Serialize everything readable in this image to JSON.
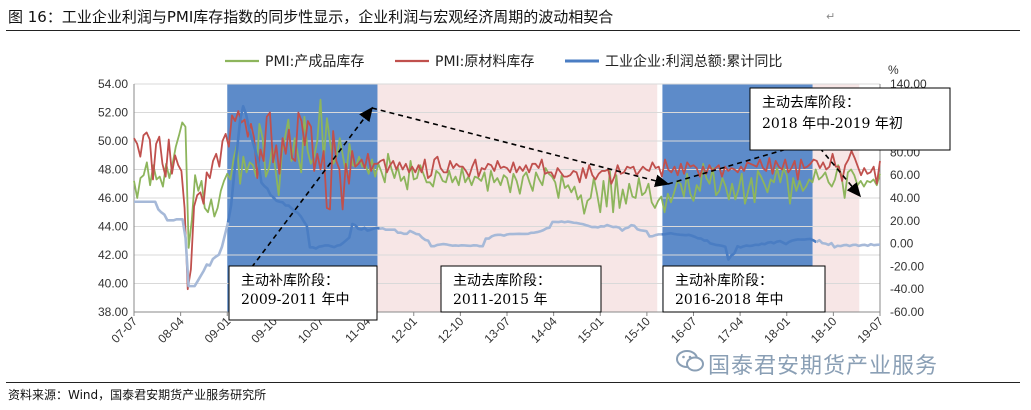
{
  "figure_title": "图 16：工业企业利润与PMI库存指数的同步性显示，企业利润与宏观经济周期的波动相契合",
  "source_note": "资料来源：Wind，国泰君安期货产业服务研究所",
  "watermark": "国泰君安期货产业服务",
  "paragraph_mark": "↵",
  "right_axis_unit": "%",
  "colors": {
    "pmi_finished": "#8db55c",
    "pmi_raw": "#c0504d",
    "profit": "#4a7dc3",
    "profit_faded": "#a6b9d8",
    "blue_band": "#4f81c4",
    "pink_band": "#f6e2e2"
  },
  "annotations": [
    {
      "line1": "主动补库阶段：",
      "line2": "2009-2011 年中"
    },
    {
      "line1": "主动去库阶段：",
      "line2": "2011-2015 年"
    },
    {
      "line1": "主动补库阶段：",
      "line2": "2016-2018 年中"
    },
    {
      "line1": "主动去库阶段：",
      "line2": "2018 年中-2019 年初"
    }
  ],
  "chart_data": {
    "type": "line",
    "title": "",
    "legend_position": "top",
    "x_ticks": [
      "07-07",
      "08-04",
      "09-01",
      "09-10",
      "10-07",
      "11-04",
      "12-01",
      "12-10",
      "13-07",
      "14-04",
      "15-01",
      "15-10",
      "16-07",
      "17-04",
      "18-01",
      "18-10",
      "19-07"
    ],
    "x_range": [
      "2007-07",
      "2019-07"
    ],
    "y_left": {
      "range": [
        38,
        54
      ],
      "ticks": [
        "38.00",
        "40.00",
        "42.00",
        "44.00",
        "46.00",
        "48.00",
        "50.00",
        "52.00",
        "54.00"
      ]
    },
    "y_right": {
      "range": [
        -60,
        140
      ],
      "ticks": [
        "-60.00",
        "-40.00",
        "-20.00",
        "0.00",
        "20.00",
        "40.00",
        "60.00",
        "80.00",
        "100.00",
        "120.00",
        "140.00"
      ]
    },
    "bands": [
      {
        "type": "主动补库",
        "start": "2009-01",
        "end": "2011-06"
      },
      {
        "type": "主动去库",
        "start": "2011-06",
        "end": "2015-12"
      },
      {
        "type": "主动补库",
        "start": "2016-01",
        "end": "2018-06"
      },
      {
        "type": "主动去库",
        "start": "2018-06",
        "end": "2019-03"
      }
    ],
    "series": [
      {
        "name": "PMI:产成品库存",
        "axis": "left",
        "start": "2007-07",
        "values": [
          47.2,
          46.0,
          47.4,
          47.6,
          48.5,
          46.9,
          48.3,
          47.3,
          47.5,
          46.8,
          48.4,
          47.4,
          48.4,
          49.6,
          50.4,
          51.3,
          51.0,
          42.5,
          44.5,
          47.6,
          46.5,
          47.2,
          45.3,
          45.0,
          45.9,
          44.7,
          45.3,
          46.5,
          47.2,
          47.7,
          47.3,
          48.8,
          49.7,
          47.0,
          48.9,
          47.8,
          48.5,
          48.3,
          47.5,
          51.2,
          50.2,
          47.5,
          48.1,
          49.6,
          48.0,
          46.2,
          49.2,
          50.3,
          51.5,
          48.6,
          50.2,
          49.0,
          47.8,
          51.7,
          49.3,
          48.4,
          48.9,
          50.0,
          52.9,
          48.6,
          51.6,
          49.9,
          48.4,
          48.9,
          50.2,
          48.9,
          47.7,
          49.8,
          48.3,
          48.2,
          48.9,
          48.2,
          48.3,
          47.7,
          48.7,
          47.5,
          48.4,
          47.8,
          47.1,
          49.1,
          48.1,
          47.4,
          48.2,
          47.2,
          47.5,
          46.6,
          48.6,
          47.3,
          47.4,
          48.3,
          47.7,
          47.1,
          47.1,
          46.8,
          47.9,
          47.7,
          47.2,
          47.1,
          47.9,
          47.1,
          47.5,
          46.9,
          48.1,
          47.1,
          47.5,
          46.9,
          47.5,
          47.4,
          47.2,
          47.8,
          46.5,
          47.9,
          47.1,
          47.4,
          46.9,
          47.6,
          47.4,
          46.4,
          47.7,
          47.2,
          46.3,
          47.5,
          47.8,
          47.1,
          46.5,
          47.8,
          47.3,
          46.9,
          48.1,
          47.7,
          47.5,
          47.1,
          46.0,
          47.6,
          46.7,
          46.9,
          46.4,
          46.8,
          45.9,
          46.2,
          44.9,
          45.8,
          46.0,
          47.4,
          46.3,
          45.0,
          47.2,
          45.4,
          47.9,
          45.0,
          47.6,
          45.3,
          46.6,
          45.6,
          47.0,
          46.1,
          46.0,
          47.4,
          46.2,
          46.4,
          47.0,
          45.7,
          45.3,
          45.8,
          46.1,
          45.0,
          46.3,
          45.7,
          46.4,
          47.2,
          47.0,
          46.1,
          47.7,
          46.3,
          45.8,
          46.9,
          46.5,
          48.4,
          47.4,
          47.0,
          48.1,
          46.2,
          46.5,
          47.4,
          46.8,
          45.9,
          47.0,
          45.9,
          46.6,
          47.7,
          45.6,
          46.5,
          47.4,
          45.7,
          47.9,
          47.5,
          47.0,
          46.4,
          47.3,
          47.1,
          48.1,
          47.1,
          48.1,
          47.6,
          45.6,
          47.4,
          46.5,
          47.2,
          46.5,
          46.8,
          47.3,
          47.1,
          48.0,
          47.3,
          47.5,
          47.8,
          47.1,
          46.8,
          47.3,
          48.3,
          47.6,
          46.0,
          47.8,
          48.0,
          47.6,
          46.9,
          47.2,
          46.8,
          47.2,
          47.1,
          47.3,
          46.9,
          47.7
        ]
      },
      {
        "name": "PMI:原材料库存",
        "axis": "left",
        "start": "2007-07",
        "values": [
          50.2,
          49.8,
          48.9,
          50.4,
          50.6,
          50.1,
          47.3,
          49.8,
          50.3,
          48.4,
          47.5,
          50.1,
          47.7,
          49.0,
          48.3,
          47.9,
          45.3,
          39.6,
          41.0,
          45.4,
          46.2,
          46.4,
          45.6,
          47.8,
          47.4,
          48.6,
          49.1,
          48.2,
          50.0,
          50.5,
          49.6,
          51.8,
          51.4,
          52.1,
          51.3,
          51.5,
          50.3,
          51.2,
          50.2,
          47.4,
          49.4,
          48.6,
          51.7,
          52.0,
          48.5,
          49.7,
          47.7,
          50.2,
          49.1,
          50.8,
          48.8,
          48.6,
          52.0,
          51.4,
          49.7,
          51.4,
          51.0,
          47.9,
          49.1,
          48.0,
          49.3,
          45.3,
          45.2,
          50.7,
          48.6,
          48.0,
          45.2,
          48.4,
          47.0,
          49.3,
          48.2,
          48.4,
          48.7,
          48.1,
          49.1,
          47.9,
          48.4,
          48.4,
          48.6,
          48.7,
          47.8,
          48.3,
          48.6,
          48.0,
          48.5,
          48.0,
          48.4,
          47.8,
          48.2,
          47.8,
          48.3,
          47.8,
          48.7,
          47.4,
          47.6,
          48.7,
          48.9,
          48.1,
          47.8,
          47.8,
          48.6,
          48.1,
          48.4,
          48.2,
          48.2,
          47.9,
          47.5,
          48.2,
          48.7,
          47.5,
          48.1,
          48.0,
          48.4,
          48.3,
          47.9,
          48.6,
          48.1,
          48.2,
          48.1,
          47.8,
          48.5,
          47.8,
          48.2,
          47.9,
          48.3,
          47.8,
          48.4,
          48.4,
          48.1,
          48.7,
          47.7,
          47.8,
          47.8,
          47.4,
          48.1,
          47.8,
          47.5,
          47.5,
          47.6,
          47.9,
          47.8,
          47.1,
          48.1,
          47.4,
          48.3,
          47.6,
          47.3,
          47.7,
          47.9,
          47.9,
          48.0,
          47.0,
          47.5,
          48.3,
          47.7,
          47.8,
          48.2,
          48.1,
          48.2,
          47.6,
          47.9,
          48.2,
          48.0,
          47.9,
          48.5,
          48.1,
          48.2,
          47.5,
          48.7,
          48.0,
          47.8,
          48.2,
          47.6,
          48.4,
          47.7,
          48.5,
          48.2,
          48.3,
          48.1,
          47.5,
          48.2,
          47.7,
          48.3,
          47.9,
          48.1,
          48.3,
          47.5,
          48.2,
          47.9,
          48.1,
          48.0,
          47.8,
          48.2,
          47.9,
          48.5,
          48.4,
          48.3,
          48.2,
          48.7,
          48.1,
          47.9,
          48.8,
          47.7,
          48.6,
          48.2,
          48.0,
          48.7,
          47.8,
          48.1,
          48.6,
          47.3,
          48.7,
          48.1,
          48.2,
          48.4,
          48.7,
          48.6,
          48.1,
          48.5,
          48.0,
          48.2,
          49.1,
          48.2,
          48.2,
          47.2,
          48.3,
          48.7,
          49.3,
          48.8,
          48.2,
          47.6,
          48.1,
          47.7,
          47.8,
          48.2,
          47.0,
          48.6
        ]
      },
      {
        "name": "工业企业:利润总额:累计同比",
        "axis": "right",
        "start": "2007-07",
        "values": [
          36.7,
          36.7,
          36.7,
          36.7,
          36.7,
          36.7,
          36.7,
          36.7,
          30.1,
          27.4,
          25.5,
          20.4,
          20.4,
          20.4,
          21.3,
          21.3,
          21.3,
          4.9,
          -37.3,
          -37.3,
          -37.3,
          -32.9,
          -28.3,
          -23.8,
          -18.3,
          -19.2,
          -13.5,
          -11.4,
          -9.7,
          -2.9,
          7.8,
          18.6,
          33.1,
          59.8,
          82.7,
          108.4,
          120.5,
          113.0,
          100.0,
          90.7,
          81.9,
          71.3,
          53.6,
          50.4,
          48.2,
          42.7,
          40.4,
          37.6,
          36.7,
          36.2,
          33.5,
          33.4,
          30.8,
          28.3,
          27.0,
          23.9,
          19.5,
          15.5,
          -3.3,
          -3.3,
          -4.3,
          -2.7,
          -2.3,
          -1.6,
          -1.6,
          -2.3,
          -3.1,
          -1.8,
          -1.3,
          0.7,
          3.0,
          5.3,
          17.2,
          16.0,
          12.9,
          12.3,
          13.8,
          11.4,
          12.1,
          13.1,
          13.8,
          13.1,
          13.4,
          12.2,
          12.2,
          12.2,
          12.2,
          9.6,
          9.6,
          8.6,
          8.6,
          11.1,
          9.9,
          8.5,
          8.1,
          5.3,
          3.3,
          2.6,
          -2.3,
          -2.3,
          -1.2,
          -0.8,
          -0.4,
          -0.7,
          -1.3,
          -1.8,
          -1.6,
          -1.9,
          -1.5,
          -1.6,
          -1.8,
          -2.0,
          -1.5,
          -1.6,
          -2.3,
          -2.3,
          4.4,
          4.4,
          6.4,
          7.4,
          7.7,
          7.7,
          7.0,
          8.0,
          8.4,
          8.4,
          8.5,
          8.6,
          8.5,
          8.5,
          8.6,
          9.5,
          9.6,
          10.1,
          10.8,
          11.8,
          13.4,
          13.9,
          19.0,
          19.0,
          18.9,
          19.4,
          18.7,
          19.3,
          18.9,
          18.3,
          18.1,
          17.5,
          17.1,
          16.2,
          15.4,
          14.5,
          14.6,
          14.2,
          15.2,
          15.0,
          16.3,
          15.4,
          14.5,
          14.7,
          14.0,
          11.4,
          13.4,
          14.1,
          16.2,
          15.6,
          12.6,
          11.7,
          11.3,
          10.9,
          6.3,
          6.5,
          7.5,
          8.1,
          8.1,
          8.2,
          8.7,
          9.1,
          8.5,
          8.1,
          7.8,
          7.6,
          7.4,
          7.7,
          6.9,
          5.9,
          4.6,
          4.4,
          2.7,
          2.8,
          0.2,
          -0.5,
          -1.2,
          -1.5,
          -2.0,
          -2.8,
          -14.0,
          -10.3,
          -8.6,
          -2.3,
          -3.4,
          -2.4,
          -1.7,
          -2.1,
          -1.7,
          -1.0,
          -1.2,
          -0.1,
          -0.5,
          0.8,
          1.3,
          0.3,
          1.7,
          2.2,
          0.9,
          -0.4,
          1.5,
          2.6,
          3.2,
          3.7,
          3.5,
          3.5,
          3.9,
          4.1,
          2.9,
          1.3,
          3.0,
          0.4,
          0.0,
          -1.1,
          0.4,
          -3.3,
          -1.9,
          -2.2,
          -1.4,
          -1.2,
          -2.1,
          -1.2,
          -1.0,
          -2.0,
          -1.3,
          -1.1,
          -1.9,
          -0.5,
          -1.4,
          -1.1,
          -0.9
        ]
      }
    ]
  }
}
